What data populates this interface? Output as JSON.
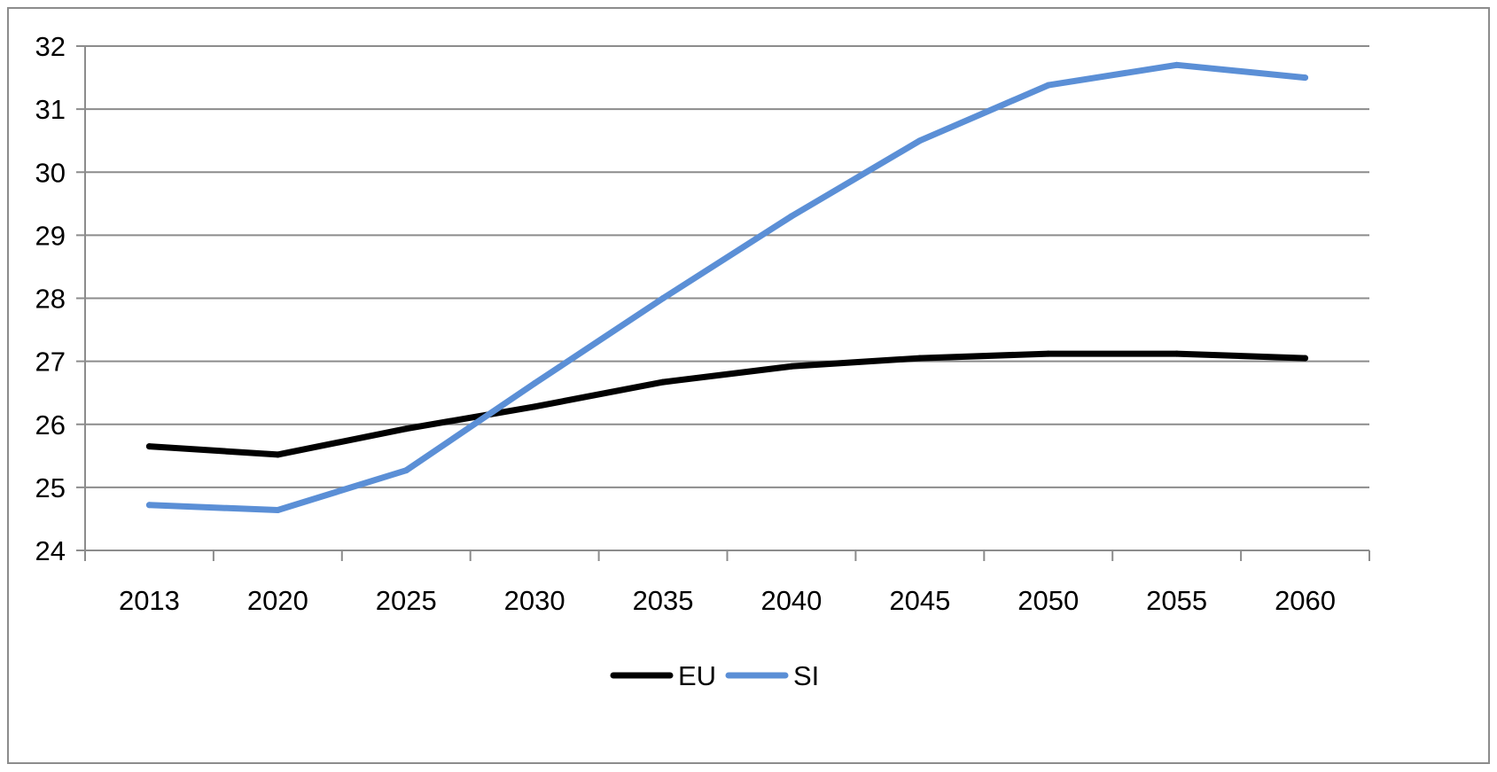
{
  "chart_data": {
    "type": "line",
    "title": "",
    "xlabel": "",
    "ylabel": "",
    "categories": [
      "2013",
      "2020",
      "2025",
      "2030",
      "2035",
      "2040",
      "2045",
      "2050",
      "2055",
      "2060"
    ],
    "ylim": [
      24,
      32
    ],
    "yticks": [
      24,
      25,
      26,
      27,
      28,
      29,
      30,
      31,
      32
    ],
    "grid": "horizontal",
    "legend_position": "bottom",
    "series": [
      {
        "name": "EU",
        "color": "#000000",
        "values": [
          25.65,
          25.52,
          25.93,
          26.28,
          26.67,
          26.92,
          27.05,
          27.12,
          27.12,
          27.05
        ]
      },
      {
        "name": "SI",
        "color": "#5b8fd6",
        "values": [
          24.72,
          24.64,
          25.27,
          26.65,
          28.0,
          29.3,
          30.5,
          31.38,
          31.7,
          31.5
        ]
      }
    ]
  }
}
